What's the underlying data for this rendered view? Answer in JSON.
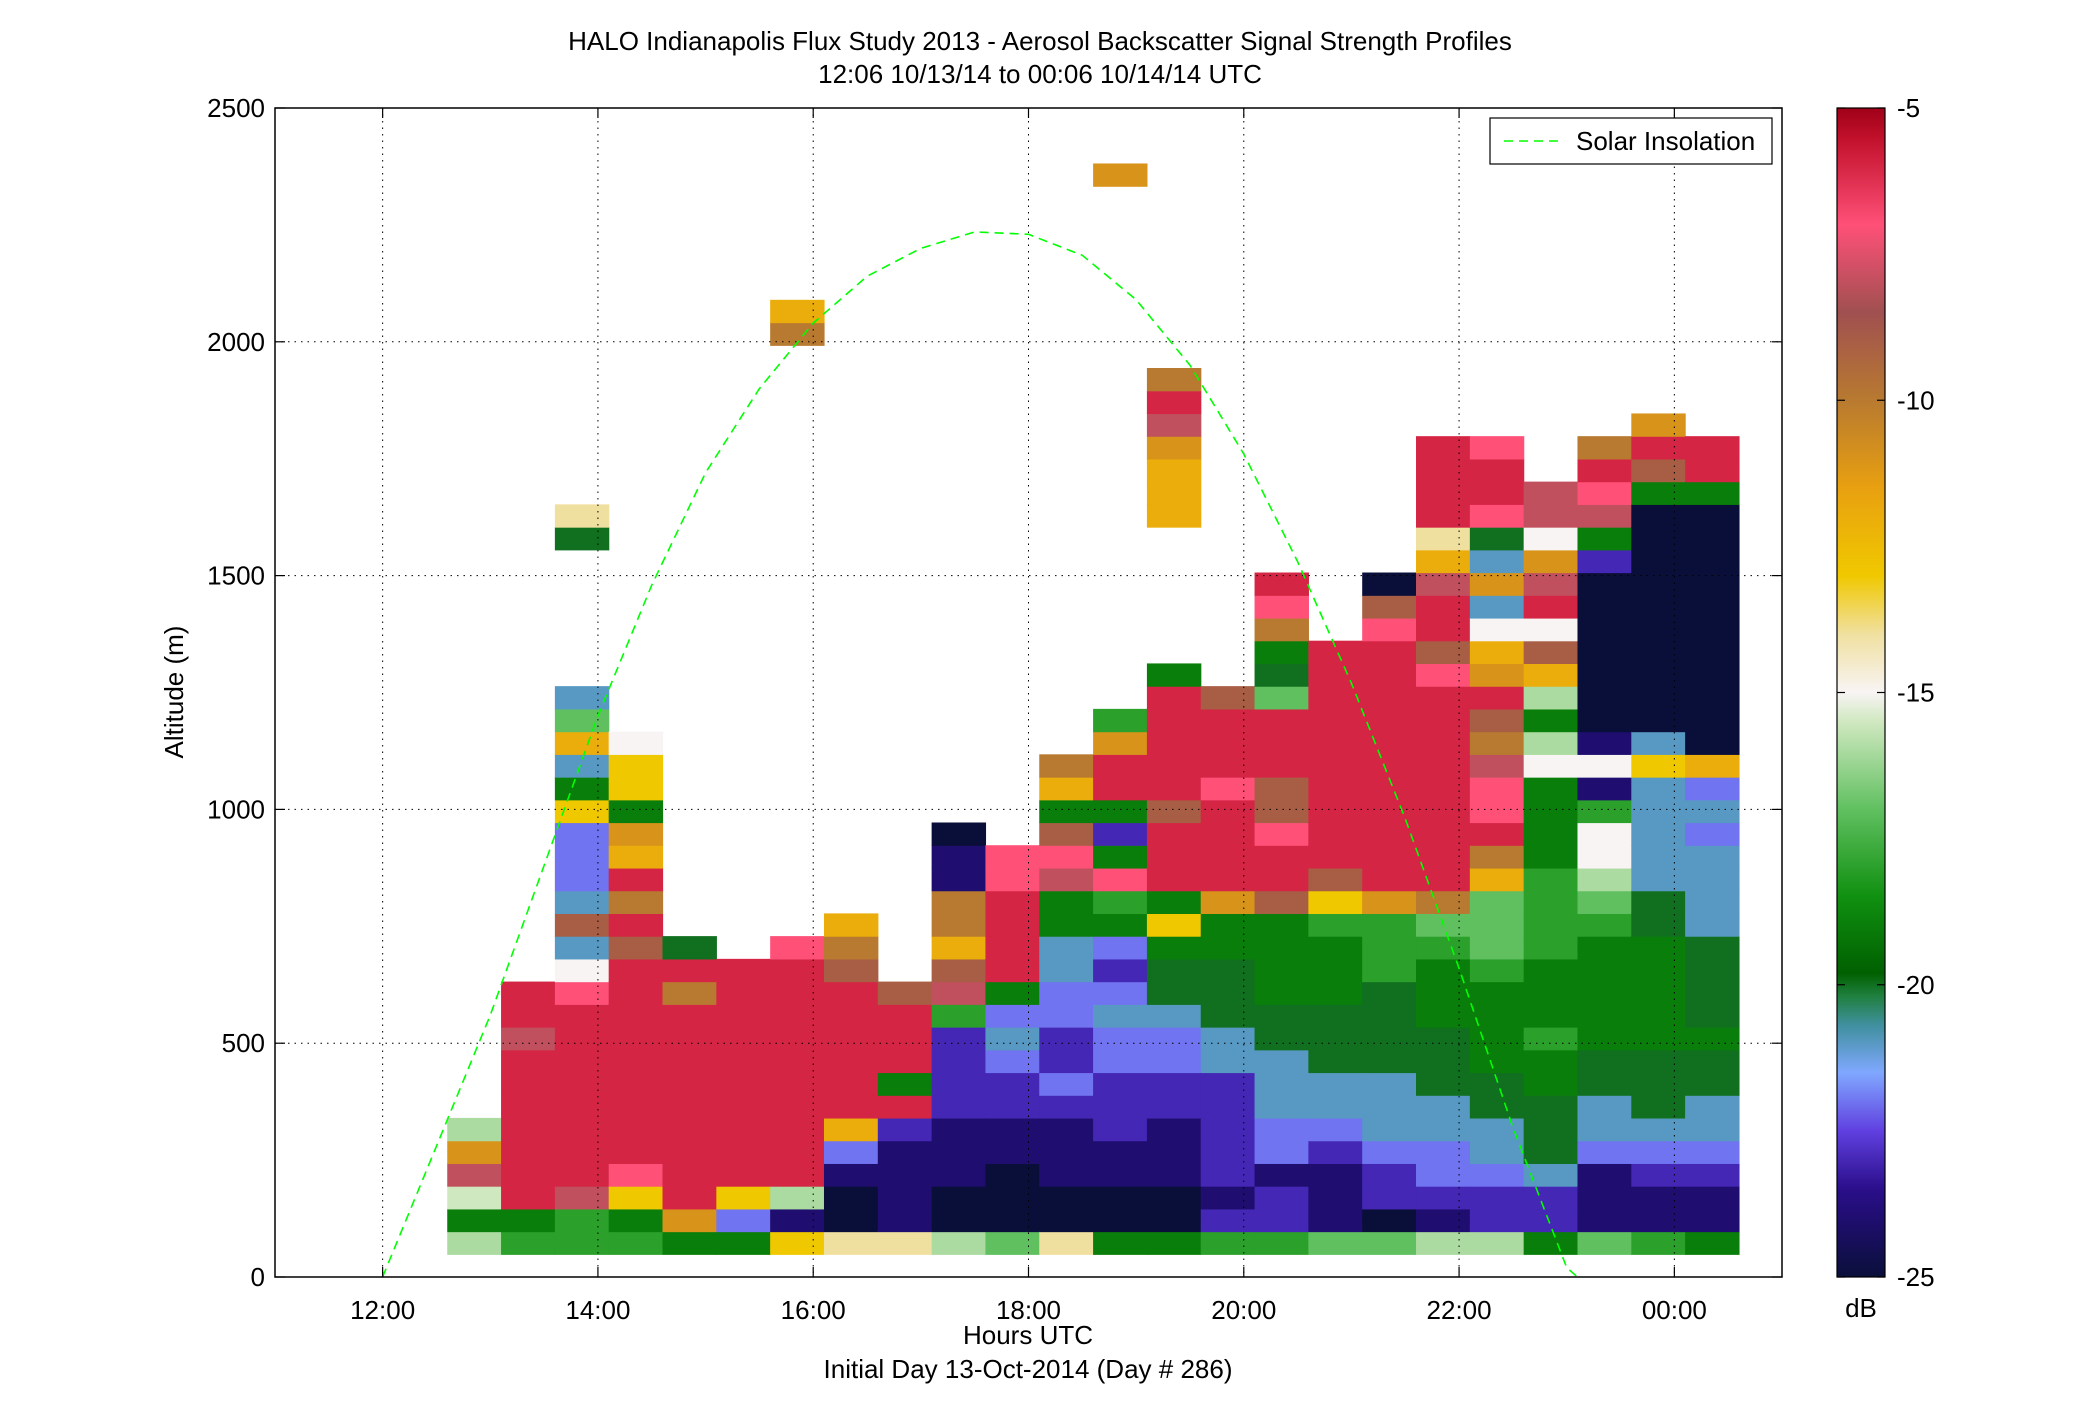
{
  "chart_data": {
    "type": "heatmap",
    "title": "HALO Indianapolis Flux Study 2013 - Aerosol Backscatter Signal Strength Profiles",
    "subtitle": "12:06 10/13/14 to 00:06 10/14/14  UTC",
    "xlabel": "Hours UTC",
    "xlabel2": "Initial Day 13-Oct-2014 (Day # 286)",
    "ylabel": "Altitude (m)",
    "xlim": [
      11,
      25
    ],
    "ylim": [
      0,
      2500
    ],
    "x_ticks": [
      12,
      14,
      16,
      18,
      20,
      22,
      24
    ],
    "x_tick_labels": [
      "12:00",
      "14:00",
      "16:00",
      "18:00",
      "20:00",
      "22:00",
      "00:00"
    ],
    "y_ticks": [
      0,
      500,
      1000,
      1500,
      2000,
      2500
    ],
    "y_tick_labels": [
      "0",
      "500",
      "1000",
      "1500",
      "2000",
      "2500"
    ],
    "grid": true,
    "legend": {
      "position": "top-right",
      "entries": [
        {
          "name": "Solar Insolation",
          "color": "#00ff00",
          "style": "dashed"
        }
      ]
    },
    "colorbar": {
      "min": -25,
      "max": -5,
      "unit": "dB",
      "ticks": [
        -5,
        -10,
        -15,
        -20,
        -25
      ],
      "tick_labels": [
        "-5",
        "-10",
        "-15",
        "-20",
        "-25"
      ],
      "stops": [
        {
          "value": -25,
          "color": "#0a0f3a"
        },
        {
          "value": -23.5,
          "color": "#2a0e8a"
        },
        {
          "value": -22.5,
          "color": "#6040e0"
        },
        {
          "value": -21.5,
          "color": "#80a8ff"
        },
        {
          "value": -20.7,
          "color": "#4090a0"
        },
        {
          "value": -20.2,
          "color": "#208040"
        },
        {
          "value": -19.8,
          "color": "#006000"
        },
        {
          "value": -18.5,
          "color": "#109010"
        },
        {
          "value": -17,
          "color": "#60c060"
        },
        {
          "value": -15.5,
          "color": "#d0e8c0"
        },
        {
          "value": -15,
          "color": "#f8f4f4"
        },
        {
          "value": -14,
          "color": "#f0e0a0"
        },
        {
          "value": -13,
          "color": "#f0c800"
        },
        {
          "value": -11.5,
          "color": "#e8a010"
        },
        {
          "value": -10,
          "color": "#b87a30"
        },
        {
          "value": -8.5,
          "color": "#a05050"
        },
        {
          "value": -7,
          "color": "#ff5078"
        },
        {
          "value": -5.5,
          "color": "#c0102a"
        },
        {
          "value": -5,
          "color": "#a00018"
        }
      ]
    },
    "heatmap": {
      "x_start_hours": 12.1,
      "dx_hours": 0.5,
      "dy_m": 48.6,
      "note_columns": "each column lists cell values (dB) from altitude 48.6 m upward; null = no data",
      "columns": [
        [],
        [
          -16,
          -19,
          -15.5,
          -8,
          -11,
          -16
        ],
        [
          -18,
          -19,
          -6,
          -6,
          -6,
          -6,
          -6,
          -6,
          -6,
          -8,
          -6,
          -6
        ],
        [
          -18,
          -18,
          -8,
          -6,
          -6,
          -6,
          -6,
          -6,
          -6,
          -6,
          -6,
          -7,
          -15,
          -21,
          -9,
          -21,
          -22,
          -22,
          -22,
          -13,
          -19,
          -21,
          -12,
          -17,
          -21,
          null,
          null,
          null,
          null,
          null,
          null,
          -20,
          -14
        ],
        [
          -18,
          -19,
          -13,
          -7,
          -6,
          -6,
          -6,
          -6,
          -6,
          -6,
          -6,
          -6,
          -6,
          -9,
          -6,
          -10,
          -6,
          -12,
          -11,
          -19,
          -13,
          -13,
          -15
        ],
        [
          -19,
          -11,
          -6,
          -6,
          -6,
          -6,
          -6,
          -6,
          -6,
          -6,
          -6,
          -10,
          -6,
          -20
        ],
        [
          -19,
          -22,
          -13,
          -6,
          -6,
          -6,
          -6,
          -6,
          -6,
          -6,
          -6,
          -6,
          -6
        ],
        [
          -13,
          -24,
          -16,
          -6,
          -6,
          -6,
          -6,
          -6,
          -6,
          -6,
          -6,
          -6,
          -6,
          -7,
          null,
          null,
          null,
          null,
          null,
          null,
          null,
          null,
          null,
          null,
          null,
          null,
          null,
          null,
          null,
          null,
          null,
          null,
          null,
          null,
          null,
          null,
          null,
          null,
          null,
          null,
          -10,
          -12
        ],
        [
          -14,
          -25,
          -25,
          -24,
          -22,
          -12,
          -6,
          -6,
          -6,
          -6,
          -6,
          -6,
          -9,
          -10,
          -12
        ],
        [
          -14,
          -24,
          -24,
          -24,
          -24,
          -23,
          -6,
          -19,
          -6,
          -6,
          -6,
          -9
        ],
        [
          -16,
          -25,
          -25,
          -24,
          -24,
          -24,
          -23,
          -23,
          -23,
          -23,
          -18,
          -8,
          -9,
          -12,
          -10,
          -10,
          -24,
          -24,
          -25
        ],
        [
          -17,
          -25,
          -25,
          -25,
          -24,
          -24,
          -23,
          -23,
          -22,
          -21,
          -22,
          -19,
          -6,
          -6,
          -6,
          -6,
          -7,
          -7
        ],
        [
          -14,
          -25,
          -25,
          -24,
          -24,
          -24,
          -23,
          -22,
          -23,
          -23,
          -22,
          -22,
          -21,
          -21,
          -19,
          -19,
          -8,
          -7,
          -9,
          -19,
          -12,
          -10
        ],
        [
          -19,
          -25,
          -25,
          -24,
          -24,
          -23,
          -23,
          -23,
          -22,
          -22,
          -21,
          -22,
          -23,
          -22,
          -19,
          -18,
          -7,
          -19,
          -23,
          -19,
          -6,
          -6,
          -11,
          -18,
          null,
          null,
          null,
          null,
          null,
          null,
          null,
          null,
          null,
          null,
          null,
          null,
          null,
          null,
          null,
          null,
          null,
          null,
          null,
          null,
          null,
          null,
          null,
          -11
        ],
        [
          -19,
          -25,
          -25,
          -24,
          -24,
          -24,
          -23,
          -23,
          -22,
          -22,
          -21,
          -20,
          -20,
          -19,
          -13,
          -19,
          -6,
          -6,
          -6,
          -9,
          -6,
          -6,
          -6,
          -6,
          -6,
          -19,
          null,
          null,
          null,
          null,
          null,
          null,
          -12,
          -12,
          -12,
          -11,
          -8,
          -6,
          -10
        ],
        [
          -18,
          -23,
          -24,
          -23,
          -23,
          -23,
          -23,
          -23,
          -21,
          -21,
          -20,
          -20,
          -20,
          -19,
          -19,
          -11,
          -6,
          -6,
          -6,
          -6,
          -7,
          -6,
          -6,
          -6,
          -9
        ],
        [
          -18,
          -23,
          -23,
          -24,
          -22,
          -22,
          -21,
          -21,
          -21,
          -20,
          -20,
          -19,
          -19,
          -19,
          -19,
          -9,
          -6,
          -6,
          -7,
          -9,
          -9,
          -6,
          -6,
          -6,
          -17,
          -20,
          -19,
          -10,
          -7,
          -6
        ],
        [
          -17,
          -24,
          -24,
          -24,
          -23,
          -22,
          -21,
          -21,
          -20,
          -20,
          -20,
          -19,
          -19,
          -19,
          -18,
          -13,
          -9,
          -6,
          -6,
          -6,
          -6,
          -6,
          -6,
          -6,
          -6,
          -6,
          -6
        ],
        [
          -17,
          -25,
          -23,
          -23,
          -22,
          -21,
          -21,
          -21,
          -20,
          -20,
          -20,
          -20,
          -18,
          -18,
          -18,
          -11,
          -6,
          -6,
          -6,
          -6,
          -6,
          -6,
          -6,
          -6,
          -6,
          -6,
          -6,
          -7,
          -9,
          -25
        ],
        [
          -16,
          -24,
          -23,
          -22,
          -22,
          -21,
          -21,
          -20,
          -20,
          -20,
          -19,
          -19,
          -19,
          -18,
          -17,
          -10,
          -6,
          -6,
          -6,
          -6,
          -6,
          -6,
          -6,
          -6,
          -6,
          -7,
          -9,
          -6,
          -6,
          -8,
          -12,
          -14,
          -6,
          -6,
          -6,
          -6
        ],
        [
          -16,
          -23,
          -23,
          -22,
          -21,
          -21,
          -20,
          -20,
          -19,
          -19,
          -19,
          -19,
          -18,
          -17,
          -17,
          -17,
          -12,
          -10,
          -6,
          -7,
          -7,
          -8,
          -10,
          -9,
          -6,
          -11,
          -12,
          -15,
          -21,
          -11,
          -21,
          -20,
          -7,
          -6,
          -6,
          -7
        ],
        [
          -19,
          -23,
          -23,
          -21,
          -20,
          -20,
          -20,
          -19,
          -19,
          -18,
          -19,
          -19,
          -19,
          -18,
          -18,
          -18,
          -18,
          -19,
          -19,
          -19,
          -19,
          -15,
          -16,
          -19,
          -16,
          -12,
          -9,
          -15,
          -6,
          -8,
          -11,
          -15,
          -8,
          -8
        ],
        [
          -17,
          -24,
          -24,
          -24,
          -22,
          -21,
          -21,
          -20,
          -20,
          -19,
          -19,
          -19,
          -19,
          -19,
          -18,
          -17,
          -16,
          -15,
          -15,
          -18,
          -24,
          -15,
          -24,
          -25,
          -25,
          -25,
          -25,
          -25,
          -25,
          -25,
          -23,
          -19,
          -8,
          -7,
          -6,
          -10
        ],
        [
          -18,
          -24,
          -24,
          -23,
          -22,
          -21,
          -20,
          -20,
          -20,
          -19,
          -19,
          -19,
          -19,
          -19,
          -20,
          -20,
          -21,
          -21,
          -21,
          -21,
          -21,
          -13,
          -21,
          -25,
          -25,
          -25,
          -25,
          -25,
          -25,
          -25,
          -25,
          -25,
          -25,
          -19,
          -9,
          -6,
          -11
        ],
        [
          -19,
          -24,
          -24,
          -23,
          -22,
          -21,
          -21,
          -20,
          -20,
          -19,
          -20,
          -20,
          -20,
          -20,
          -21,
          -21,
          -21,
          -21,
          -22,
          -21,
          -22,
          -12,
          -25,
          -25,
          -25,
          -25,
          -25,
          -25,
          -25,
          -25,
          -25,
          -25,
          -25,
          -19,
          -6,
          -6
        ]
      ]
    },
    "solar_curve": {
      "name": "Solar Insolation",
      "x": [
        12.0,
        12.5,
        13.0,
        13.5,
        14.0,
        14.5,
        15.0,
        15.5,
        16.0,
        16.5,
        17.0,
        17.5,
        18.0,
        18.5,
        19.0,
        19.5,
        20.0,
        20.5,
        21.0,
        21.5,
        22.0,
        22.5,
        23.0,
        23.1
      ],
      "y": [
        0,
        280,
        560,
        880,
        1200,
        1480,
        1720,
        1900,
        2040,
        2140,
        2200,
        2235,
        2230,
        2185,
        2090,
        1950,
        1760,
        1530,
        1270,
        980,
        660,
        320,
        20,
        0
      ]
    }
  }
}
